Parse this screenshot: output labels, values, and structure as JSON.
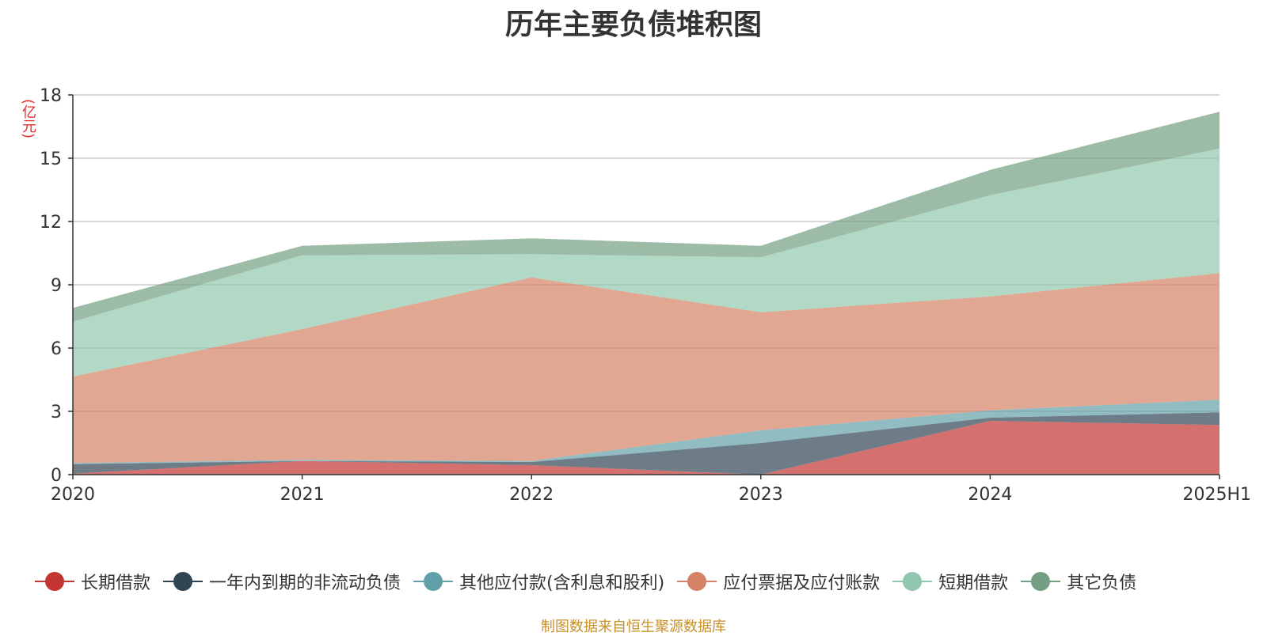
{
  "chart_data": {
    "type": "area",
    "stacked": true,
    "title": "历年主要负债堆积图",
    "unit": "(亿元)",
    "categories": [
      "2020",
      "2021",
      "2022",
      "2023",
      "2024",
      "2025H1"
    ],
    "ylim": [
      0,
      18
    ],
    "yticks": [
      0,
      3,
      6,
      9,
      12,
      15,
      18
    ],
    "grid": true,
    "legend_position": "bottom",
    "series": [
      {
        "name": "长期借款",
        "color": "#c23531",
        "values": [
          0.05,
          0.65,
          0.45,
          0.0,
          2.55,
          2.35
        ]
      },
      {
        "name": "一年内到期的非流动负债",
        "color": "#2f4554",
        "values": [
          0.45,
          0.0,
          0.15,
          1.5,
          0.15,
          0.6
        ]
      },
      {
        "name": "其他应付款(含利息和股利)",
        "color": "#61a0a8",
        "values": [
          0.05,
          0.05,
          0.05,
          0.6,
          0.35,
          0.6
        ]
      },
      {
        "name": "应付票据及应付账款",
        "color": "#d48265",
        "values": [
          4.1,
          6.2,
          8.7,
          5.6,
          5.4,
          6.0
        ]
      },
      {
        "name": "短期借款",
        "color": "#91c7ae",
        "values": [
          2.6,
          3.5,
          1.1,
          2.6,
          4.8,
          5.9
        ]
      },
      {
        "name": "其它负债",
        "color": "#749f83",
        "values": [
          0.65,
          0.45,
          0.75,
          0.55,
          1.2,
          1.75
        ]
      }
    ]
  },
  "source_note": "制图数据来自恒生聚源数据库"
}
